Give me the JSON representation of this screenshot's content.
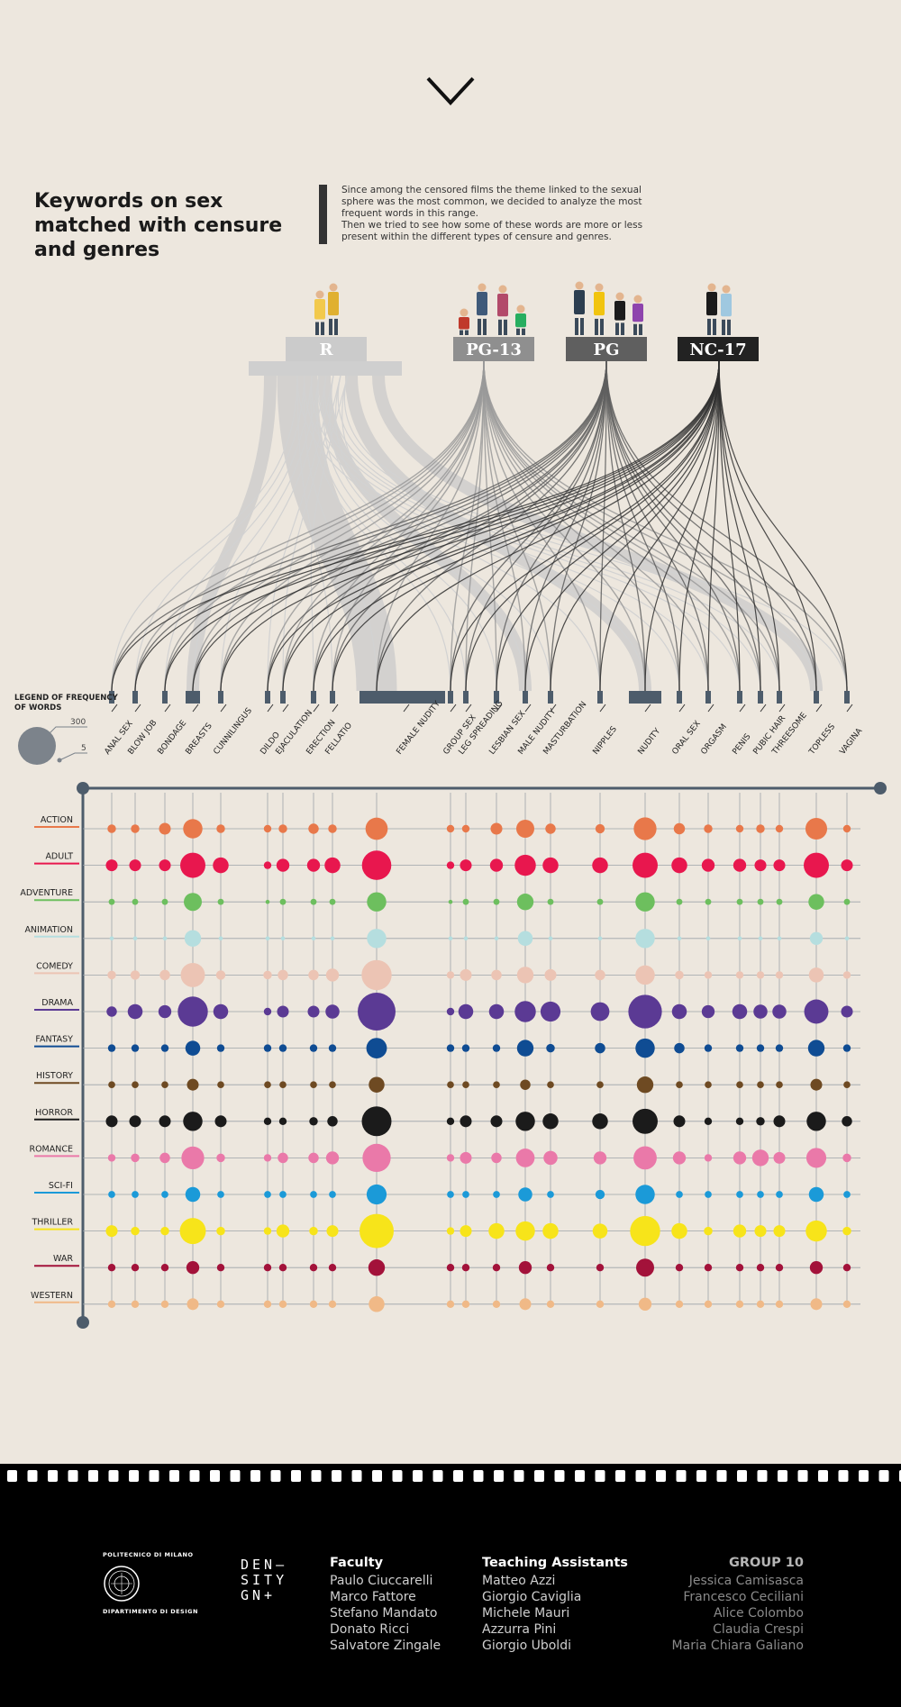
{
  "title": "Keywords on sex matched with censure and genres",
  "intro": [
    "Since among the censored films the theme linked to the sexual sphere was the most common, we decided to analyze the most frequent words in this range.",
    "Then we tried to see how some of these words are more or less present within the different types of censure and genres."
  ],
  "legend": {
    "title_line1": "LEGEND OF FREQUENCY",
    "title_line2": "OF WORDS",
    "max_label": "300",
    "min_label": "5"
  },
  "ratings": [
    {
      "label": "R",
      "color": "#c9c9c9"
    },
    {
      "label": "PG-13",
      "color": "#8d8d8d"
    },
    {
      "label": "PG",
      "color": "#5e5e5e"
    },
    {
      "label": "NC-17",
      "color": "#2b2b2b"
    }
  ],
  "chart_data": {
    "type": "bubble-matrix",
    "title": "Keywords on sex matched with censure and genres",
    "keywords": [
      "ANAL SEX",
      "BLOW JOB",
      "BONDAGE",
      "BREASTS",
      "CUNNILINGUS",
      "DILDO",
      "EJACULATION",
      "ERECTION",
      "FELLATIO",
      "FEMALE NUDITY",
      "GROUP SEX",
      "LEG SPREADING",
      "LESBIAN SEX",
      "MALE NUDITY",
      "MASTURBATION",
      "NIPPLES",
      "NUDITY",
      "ORAL SEX",
      "ORGASM",
      "PENIS",
      "PUBIC HAIR",
      "THREESOME",
      "TOPLESS",
      "VAGINA"
    ],
    "genres": [
      {
        "name": "ACTION",
        "color": "#e8784a"
      },
      {
        "name": "ADULT",
        "color": "#e8174e"
      },
      {
        "name": "ADVENTURE",
        "color": "#6dbf5e"
      },
      {
        "name": "ANIMATION",
        "color": "#b5dedf"
      },
      {
        "name": "COMEDY",
        "color": "#ecc4b4"
      },
      {
        "name": "DRAMA",
        "color": "#5b3a94"
      },
      {
        "name": "FANTASY",
        "color": "#0f4c93"
      },
      {
        "name": "HISTORY",
        "color": "#6e4a22"
      },
      {
        "name": "HORROR",
        "color": "#1b1b1b"
      },
      {
        "name": "ROMANCE",
        "color": "#ea79a9"
      },
      {
        "name": "SCI-FI",
        "color": "#1b9ad8"
      },
      {
        "name": "THRILLER",
        "color": "#f7e41a"
      },
      {
        "name": "WAR",
        "color": "#a3123a"
      },
      {
        "name": "WESTERN",
        "color": "#f0b987"
      }
    ],
    "size_legend": {
      "max": 300,
      "min": 5
    },
    "values": [
      [
        10,
        10,
        20,
        65,
        10,
        8,
        10,
        15,
        10,
        90,
        8,
        8,
        20,
        55,
        15,
        12,
        95,
        18,
        10,
        8,
        10,
        8,
        85,
        8
      ],
      [
        20,
        20,
        20,
        120,
        40,
        8,
        25,
        25,
        40,
        170,
        8,
        20,
        25,
        80,
        40,
        40,
        120,
        40,
        25,
        25,
        20,
        20,
        120,
        20
      ],
      [
        6,
        6,
        6,
        55,
        6,
        5,
        6,
        6,
        6,
        65,
        5,
        6,
        6,
        45,
        6,
        6,
        65,
        6,
        6,
        6,
        6,
        6,
        40,
        6
      ],
      [
        5,
        5,
        5,
        45,
        5,
        5,
        5,
        5,
        5,
        65,
        5,
        5,
        5,
        35,
        5,
        5,
        65,
        5,
        5,
        5,
        5,
        5,
        25,
        5
      ],
      [
        10,
        12,
        15,
        110,
        12,
        10,
        15,
        15,
        25,
        180,
        8,
        20,
        15,
        45,
        20,
        15,
        65,
        10,
        8,
        8,
        8,
        8,
        35,
        8
      ],
      [
        15,
        35,
        25,
        180,
        35,
        8,
        20,
        20,
        30,
        300,
        8,
        35,
        35,
        80,
        70,
        60,
        230,
        35,
        25,
        35,
        30,
        30,
        110,
        20
      ],
      [
        8,
        8,
        8,
        35,
        8,
        8,
        8,
        8,
        8,
        75,
        8,
        8,
        8,
        45,
        10,
        15,
        65,
        15,
        8,
        8,
        8,
        8,
        45,
        8
      ],
      [
        7,
        7,
        7,
        20,
        7,
        7,
        7,
        7,
        7,
        40,
        7,
        7,
        7,
        15,
        7,
        7,
        45,
        7,
        7,
        7,
        7,
        7,
        20,
        7
      ],
      [
        20,
        20,
        20,
        65,
        20,
        8,
        8,
        10,
        15,
        175,
        8,
        20,
        20,
        65,
        40,
        40,
        120,
        20,
        8,
        8,
        10,
        20,
        65,
        15
      ],
      [
        8,
        10,
        15,
        95,
        10,
        8,
        15,
        15,
        25,
        155,
        8,
        20,
        15,
        60,
        30,
        25,
        100,
        25,
        8,
        25,
        45,
        20,
        70,
        10
      ],
      [
        7,
        7,
        7,
        35,
        7,
        7,
        7,
        7,
        7,
        70,
        7,
        7,
        7,
        30,
        7,
        12,
        65,
        7,
        7,
        7,
        7,
        7,
        35,
        7
      ],
      [
        20,
        10,
        10,
        130,
        10,
        8,
        25,
        10,
        20,
        240,
        8,
        20,
        40,
        65,
        40,
        35,
        180,
        40,
        10,
        25,
        20,
        20,
        80,
        10
      ],
      [
        8,
        8,
        8,
        25,
        8,
        8,
        8,
        8,
        8,
        45,
        8,
        8,
        8,
        25,
        8,
        8,
        55,
        8,
        8,
        8,
        8,
        8,
        25,
        8
      ],
      [
        8,
        8,
        8,
        20,
        8,
        8,
        8,
        8,
        8,
        40,
        8,
        8,
        8,
        20,
        8,
        8,
        25,
        8,
        8,
        8,
        8,
        8,
        20,
        8
      ]
    ]
  },
  "footer": {
    "university_top": "POLITECNICO DI MILANO",
    "university_bottom": "DIPARTIMENTO DI DESIGN",
    "density_logo": [
      "DEN–",
      "SITY",
      "GN+"
    ],
    "faculty": {
      "title": "Faculty",
      "names": [
        "Paulo Ciuccarelli",
        "Marco Fattore",
        "Stefano Mandato",
        "Donato Ricci",
        "Salvatore Zingale"
      ]
    },
    "assistants": {
      "title": "Teaching Assistants",
      "names": [
        "Matteo Azzi",
        "Giorgio Caviglia",
        "Michele Mauri",
        "Azzurra Pini",
        "Giorgio Uboldi"
      ]
    },
    "group": {
      "title": "GROUP 10",
      "names": [
        "Jessica Camisasca",
        "Francesco Ceciliani",
        "Alice Colombo",
        "Claudia Crespi",
        "Maria Chiara Galiano"
      ]
    }
  }
}
